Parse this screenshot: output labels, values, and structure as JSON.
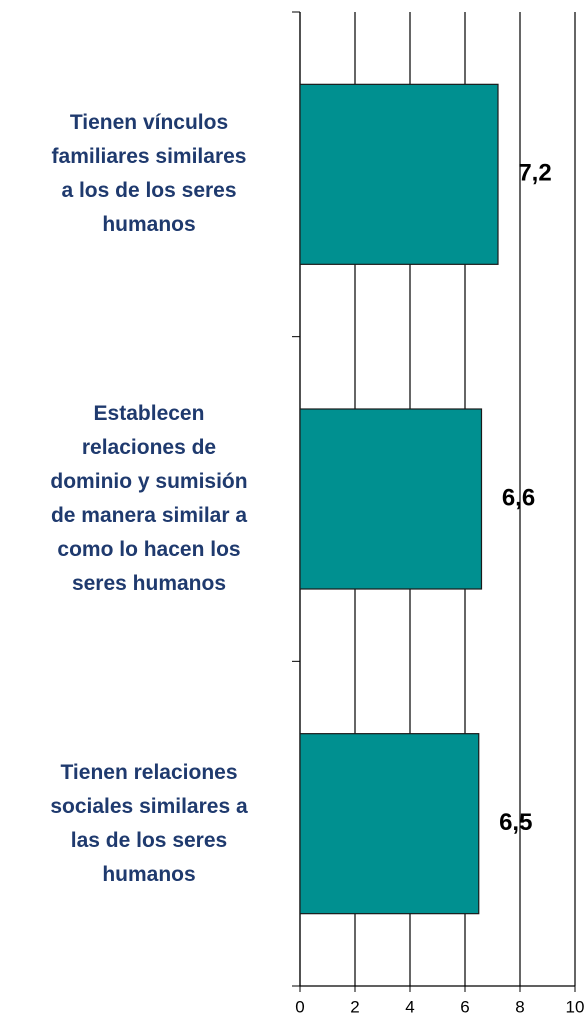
{
  "chart_data": {
    "type": "bar",
    "orientation": "horizontal",
    "categories": [
      "Tienen vínculos\nfamiliares similares\na los de los seres\nhumanos",
      "Establecen\nrelaciones de\ndominio y sumisión\nde manera similar a\ncomo lo hacen los\nseres humanos",
      "Tienen relaciones\nsociales similares a\nlas de los seres\nhumanos"
    ],
    "values": [
      7.2,
      6.6,
      6.5
    ],
    "value_labels": [
      "7,2",
      "6,6",
      "6,5"
    ],
    "color": "#009090",
    "xlim": [
      0,
      10
    ],
    "xticks": [
      0,
      2,
      4,
      6,
      8,
      10
    ],
    "grid": true
  }
}
